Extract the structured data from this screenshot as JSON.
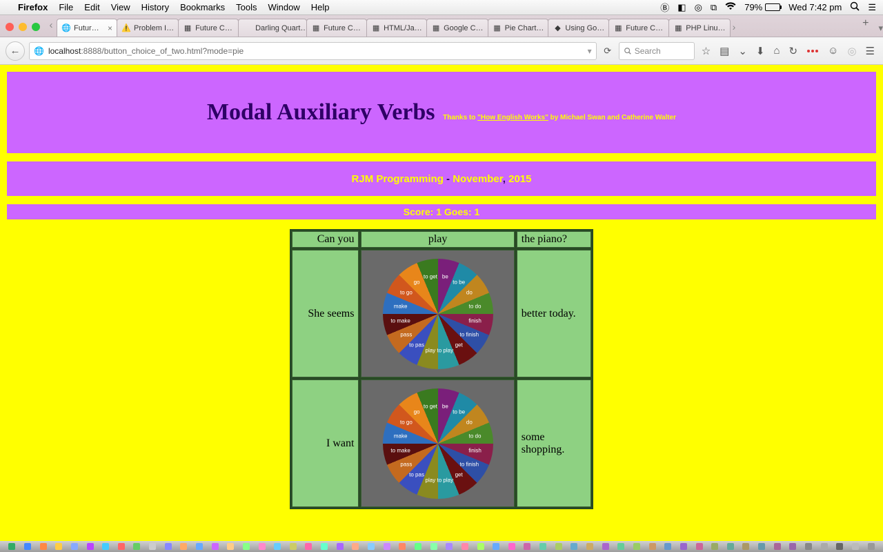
{
  "menubar": {
    "app": "Firefox",
    "items": [
      "File",
      "Edit",
      "View",
      "History",
      "Bookmarks",
      "Tools",
      "Window",
      "Help"
    ],
    "battery_pct": "79%",
    "battery_fill": 79,
    "clock": "Wed 7:42 pm",
    "status_glyphs": [
      "Ⓑ",
      "◧",
      "◎",
      "⌸",
      "☰",
      "✓"
    ]
  },
  "tabs": [
    {
      "label": "Futur…",
      "icon": "🌐",
      "active": true,
      "closable": true
    },
    {
      "label": "Problem I…",
      "icon": "⚠️"
    },
    {
      "label": "Future C…",
      "icon": "▦"
    },
    {
      "label": "Darling Quart…",
      "icon": ""
    },
    {
      "label": "Future C…",
      "icon": "▦"
    },
    {
      "label": "HTML/Ja…",
      "icon": "▦"
    },
    {
      "label": "Google C…",
      "icon": "▦"
    },
    {
      "label": "Pie Chart…",
      "icon": "▦"
    },
    {
      "label": "Using Go…",
      "icon": "◆"
    },
    {
      "label": "Future C…",
      "icon": "▦"
    },
    {
      "label": "PHP Linu…",
      "icon": "▦"
    }
  ],
  "toolbar": {
    "url_host": "localhost",
    "url_rest": ":8888/button_choice_of_two.html?mode=pie",
    "search_placeholder": "Search"
  },
  "page": {
    "bg": "#ffff00",
    "band_bg": "#cc66ff",
    "title": "Modal Auxiliary Verbs",
    "title_color": "#2e0066",
    "credit_prefix": "Thanks to ",
    "credit_link": "\"How English Works\"",
    "credit_suffix": " by Michael Swan and Catherine Walter",
    "subline": {
      "a1": "RJM Programming",
      "dash": " - ",
      "b1": "November",
      "comma": ", ",
      "b2": "2015"
    },
    "score": "Score: 1 Goes: 1",
    "table": {
      "cell_bg": "#8ed182",
      "pie_bg": "#6a6a6a",
      "border": "#385c33",
      "rows": [
        {
          "left": "Can you",
          "mid_text": "play",
          "right": "the piano?",
          "pie": false
        },
        {
          "left": "She seems",
          "right": "better today.",
          "pie": true
        },
        {
          "left": "I want",
          "right": "some shopping.",
          "pie": true
        }
      ]
    },
    "pie": {
      "slices": [
        {
          "label": "be",
          "color": "#2e6fbf"
        },
        {
          "label": "to be",
          "color": "#d1571d"
        },
        {
          "label": "do",
          "color": "#e8861a"
        },
        {
          "label": "to do",
          "color": "#3a7a1f"
        },
        {
          "label": "finish",
          "color": "#7a1f7a"
        },
        {
          "label": "to finish",
          "color": "#1f8aa6"
        },
        {
          "label": "get",
          "color": "#c0861f"
        },
        {
          "label": "to play",
          "color": "#4a8a2a"
        },
        {
          "label": "play",
          "color": "#8a1f4a"
        },
        {
          "label": "to pas",
          "color": "#2e4fa6"
        },
        {
          "label": "pass",
          "color": "#6a1010"
        },
        {
          "label": "to make",
          "color": "#2a9aa0"
        },
        {
          "label": "make",
          "color": "#8a8a1f"
        },
        {
          "label": "to go",
          "color": "#3a4fbf"
        },
        {
          "label": "go",
          "color": "#c46a1f"
        },
        {
          "label": "to get",
          "color": "#5a0f0f"
        }
      ]
    }
  },
  "dock_colors": [
    "#3a6",
    "#48f",
    "#f84",
    "#fc4",
    "#8af",
    "#b4f",
    "#4cf",
    "#f66",
    "#6c6",
    "#ccc",
    "#88f",
    "#fa6",
    "#6af",
    "#c6f",
    "#fc8",
    "#8f8",
    "#f8c",
    "#6cf",
    "#cc6",
    "#f6a",
    "#6fc",
    "#a6f",
    "#fa8",
    "#8cf",
    "#c8f",
    "#f86",
    "#6f8",
    "#8fa",
    "#a8f",
    "#f8a",
    "#af6",
    "#6af",
    "#f6c",
    "#c6a",
    "#6ca",
    "#ac6",
    "#6ac",
    "#ca6",
    "#a6c",
    "#6c9",
    "#9c6",
    "#c96",
    "#69c",
    "#96c",
    "#c69",
    "#9a6",
    "#6a9",
    "#a96",
    "#69a",
    "#a69",
    "#96a",
    "#888",
    "#aaa",
    "#666",
    "#bbb",
    "#999"
  ]
}
